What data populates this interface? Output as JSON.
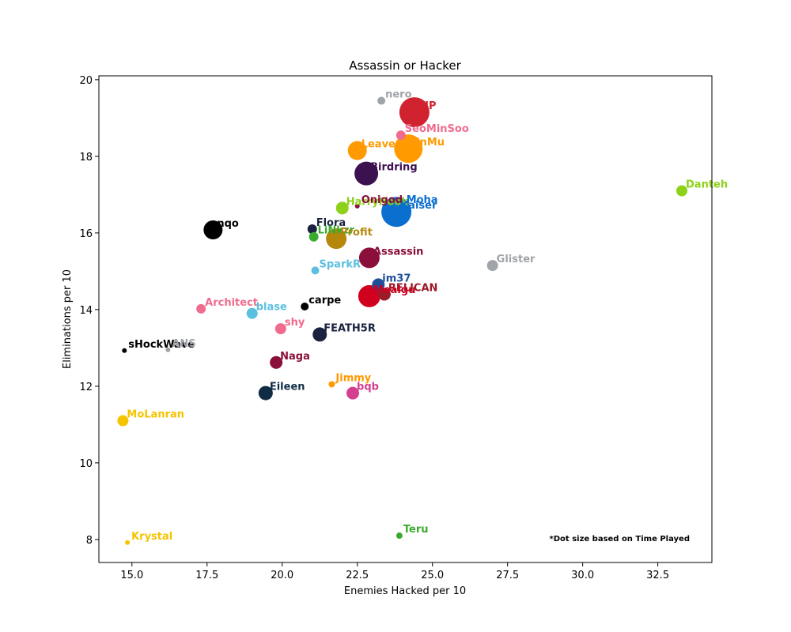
{
  "chart_data": {
    "type": "scatter",
    "title": "Assassin or Hacker",
    "xlabel": "Enemies Hacked per 10",
    "ylabel": "Eliminations per 10",
    "xlim": [
      13.9,
      34.3
    ],
    "ylim": [
      7.4,
      20.1
    ],
    "xticks": [
      "15.0",
      "17.5",
      "20.0",
      "22.5",
      "25.0",
      "27.5",
      "30.0",
      "32.5"
    ],
    "yticks": [
      "8",
      "10",
      "12",
      "14",
      "16",
      "18",
      "20"
    ],
    "grid": false,
    "annotation": "*Dot size based on Time Played",
    "points": [
      {
        "name": "nero",
        "x": 23.3,
        "y": 19.45,
        "r": 5,
        "color": "#a0a4a8"
      },
      {
        "name": "LIP",
        "x": 24.4,
        "y": 19.15,
        "r": 19,
        "color": "#d0232f"
      },
      {
        "name": "SeoMinSoo",
        "x": 23.95,
        "y": 18.55,
        "r": 6,
        "color": "#f06c8f"
      },
      {
        "name": "Leave",
        "x": 22.5,
        "y": 18.15,
        "r": 12,
        "color": "#ff9a00"
      },
      {
        "name": "JinMu",
        "x": 24.2,
        "y": 18.2,
        "r": 18,
        "color": "#ff9a00"
      },
      {
        "name": "Birdring",
        "x": 22.8,
        "y": 17.55,
        "r": 15,
        "color": "#3b1150"
      },
      {
        "name": "Danteh",
        "x": 33.3,
        "y": 17.1,
        "r": 7,
        "color": "#8ed11b"
      },
      {
        "name": "HarryHook",
        "x": 22.0,
        "y": 16.65,
        "r": 8,
        "color": "#8ed11b"
      },
      {
        "name": "Onigod",
        "x": 22.5,
        "y": 16.7,
        "r": 3,
        "color": "#8a0f3a"
      },
      {
        "name": "Kaiser",
        "x": 23.8,
        "y": 16.55,
        "r": 19,
        "color": "#0a6fcf"
      },
      {
        "name": "Moha",
        "x": 24.0,
        "y": 16.7,
        "r": 3,
        "color": "#0a6fcf"
      },
      {
        "name": "nqo",
        "x": 17.7,
        "y": 16.08,
        "r": 12,
        "color": "#000000"
      },
      {
        "name": "Flora",
        "x": 21.0,
        "y": 16.1,
        "r": 6,
        "color": "#1b2240"
      },
      {
        "name": "LiNkzr",
        "x": 21.05,
        "y": 15.9,
        "r": 6,
        "color": "#3aab2e"
      },
      {
        "name": "Profit",
        "x": 21.8,
        "y": 15.85,
        "r": 13,
        "color": "#b5870b"
      },
      {
        "name": "Assassin",
        "x": 22.9,
        "y": 15.35,
        "r": 13,
        "color": "#8a0f3a"
      },
      {
        "name": "Glister",
        "x": 27.0,
        "y": 15.15,
        "r": 7,
        "color": "#a0a4a8"
      },
      {
        "name": "SparkR",
        "x": 21.1,
        "y": 15.02,
        "r": 5,
        "color": "#5bc0e0"
      },
      {
        "name": "im37",
        "x": 23.2,
        "y": 14.65,
        "r": 8,
        "color": "#1f4e9a"
      },
      {
        "name": "RELICAN",
        "x": 23.4,
        "y": 14.4,
        "r": 8,
        "color": "#9a1b2a"
      },
      {
        "name": "Mealgu",
        "x": 22.9,
        "y": 14.35,
        "r": 14,
        "color": "#d0001e"
      },
      {
        "name": "carpe",
        "x": 20.75,
        "y": 14.08,
        "r": 5,
        "color": "#000000"
      },
      {
        "name": "Architect",
        "x": 17.3,
        "y": 14.02,
        "r": 6,
        "color": "#f06c8f"
      },
      {
        "name": "blase",
        "x": 19.0,
        "y": 13.9,
        "r": 7,
        "color": "#5bc0e0"
      },
      {
        "name": "shy",
        "x": 19.95,
        "y": 13.5,
        "r": 7,
        "color": "#f06c8f"
      },
      {
        "name": "FEATH5R",
        "x": 21.25,
        "y": 13.35,
        "r": 9,
        "color": "#1b2240"
      },
      {
        "name": "sHockWave",
        "x": 14.75,
        "y": 12.93,
        "r": 3,
        "color": "#000000"
      },
      {
        "name": "ANS",
        "x": 16.2,
        "y": 12.95,
        "r": 3,
        "color": "#a0a4a8"
      },
      {
        "name": "Naga",
        "x": 19.8,
        "y": 12.62,
        "r": 8,
        "color": "#8a0f3a"
      },
      {
        "name": "Jimmy",
        "x": 21.65,
        "y": 12.05,
        "r": 4,
        "color": "#ff9a00"
      },
      {
        "name": "Eileen",
        "x": 19.45,
        "y": 11.82,
        "r": 9,
        "color": "#102c45"
      },
      {
        "name": "bqb",
        "x": 22.35,
        "y": 11.82,
        "r": 8,
        "color": "#d43f90"
      },
      {
        "name": "MoLanran",
        "x": 14.7,
        "y": 11.1,
        "r": 7,
        "color": "#f5c400"
      },
      {
        "name": "Krystal",
        "x": 14.85,
        "y": 7.92,
        "r": 3,
        "color": "#f5c400"
      },
      {
        "name": "Teru",
        "x": 23.9,
        "y": 8.1,
        "r": 4,
        "color": "#3aab2e"
      }
    ]
  }
}
